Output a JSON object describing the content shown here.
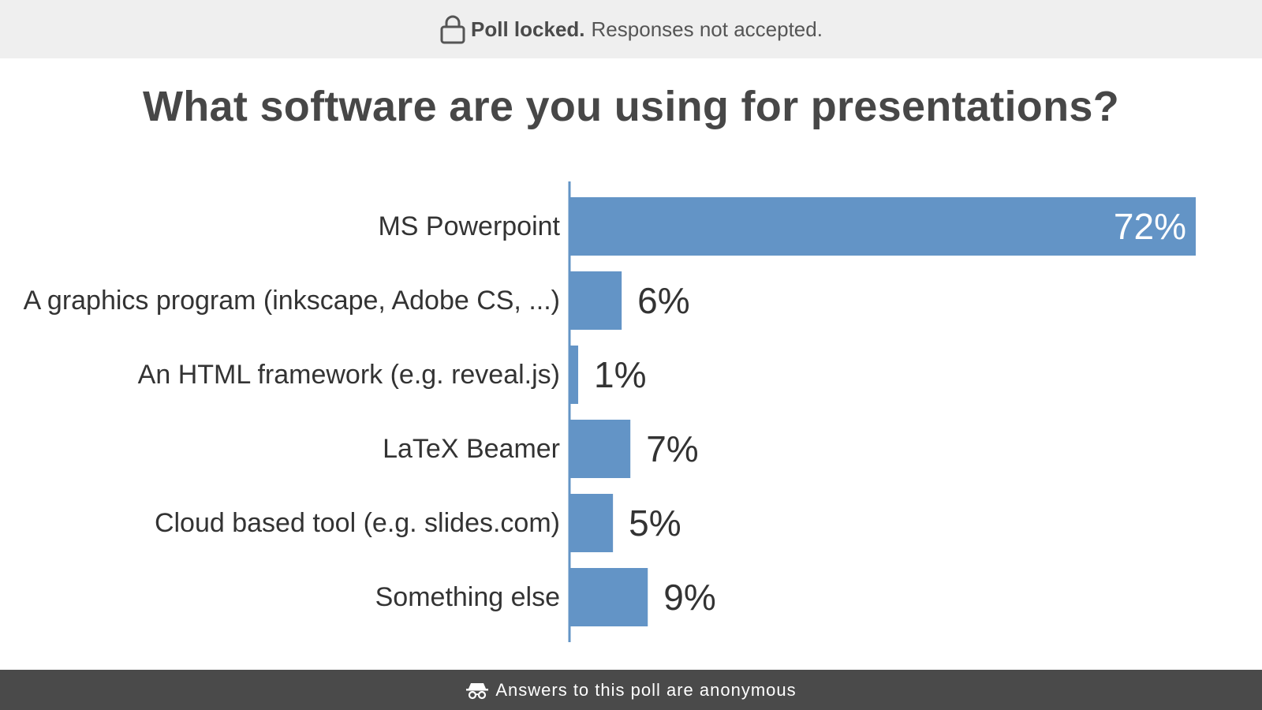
{
  "header": {
    "status_strong": "Poll locked.",
    "status_text": "Responses not accepted.",
    "icon": "lock-icon"
  },
  "footer": {
    "text": "Answers to this poll are anonymous",
    "icon": "incognito-icon"
  },
  "colors": {
    "bar": "#6394c6",
    "label": "#333333",
    "value_outside": "#333333",
    "value_inside": "#ffffff"
  },
  "chart_data": {
    "type": "bar",
    "orientation": "horizontal",
    "title": "What software are you using for presentations?",
    "categories": [
      "MS Powerpoint",
      "A graphics program (inkscape, Adobe CS, ...)",
      "An HTML framework (e.g. reveal.js)",
      "LaTeX Beamer",
      "Cloud based tool (e.g. slides.com)",
      "Something else"
    ],
    "values": [
      72,
      6,
      1,
      7,
      5,
      9
    ],
    "value_labels": [
      "72%",
      "6%",
      "1%",
      "7%",
      "5%",
      "9%"
    ],
    "unit": "%",
    "xlim": [
      0,
      72
    ],
    "grid": false,
    "legend": "none"
  }
}
